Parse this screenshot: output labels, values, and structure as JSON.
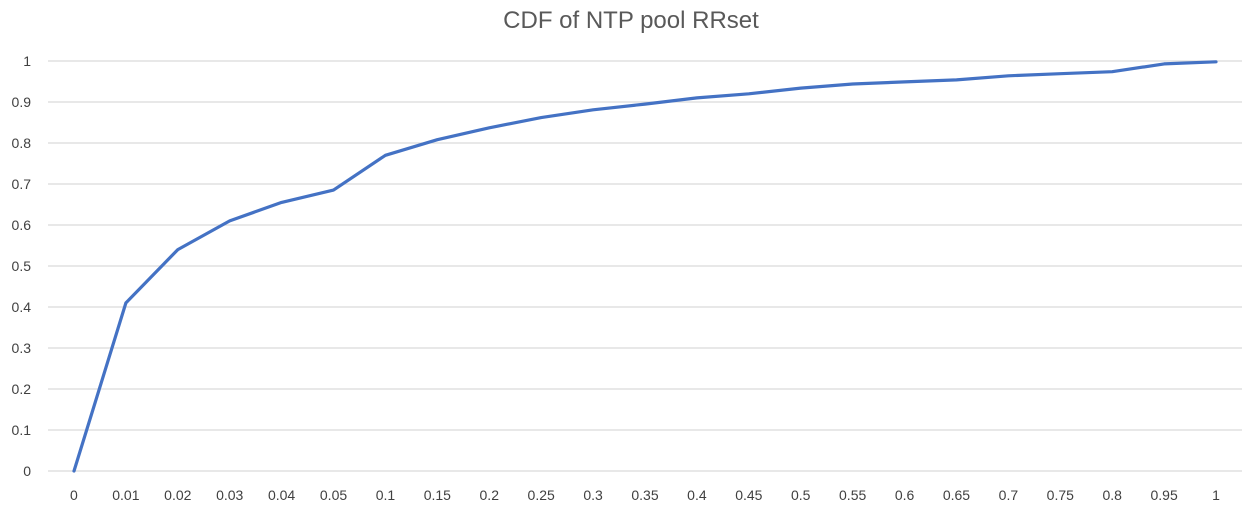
{
  "chart_data": {
    "type": "line",
    "title": "CDF of NTP pool RRset",
    "xlabel": "",
    "ylabel": "",
    "categories": [
      "0",
      "0.01",
      "0.02",
      "0.03",
      "0.04",
      "0.05",
      "0.1",
      "0.15",
      "0.2",
      "0.25",
      "0.3",
      "0.35",
      "0.4",
      "0.45",
      "0.5",
      "0.55",
      "0.6",
      "0.65",
      "0.7",
      "0.75",
      "0.8",
      "0.95",
      "1"
    ],
    "series": [
      {
        "values": [
          0,
          0.41,
          0.54,
          0.61,
          0.655,
          0.685,
          0.77,
          0.808,
          0.837,
          0.862,
          0.881,
          0.895,
          0.91,
          0.92,
          0.934,
          0.944,
          0.949,
          0.954,
          0.964,
          0.969,
          0.974,
          0.993,
          0.998
        ],
        "color": "#4472c4"
      }
    ],
    "ylim": [
      0,
      1
    ],
    "yticks": [
      "0",
      "0.1",
      "0.2",
      "0.3",
      "0.4",
      "0.5",
      "0.6",
      "0.7",
      "0.8",
      "0.9",
      "1"
    ],
    "grid": true,
    "legend": "none"
  }
}
